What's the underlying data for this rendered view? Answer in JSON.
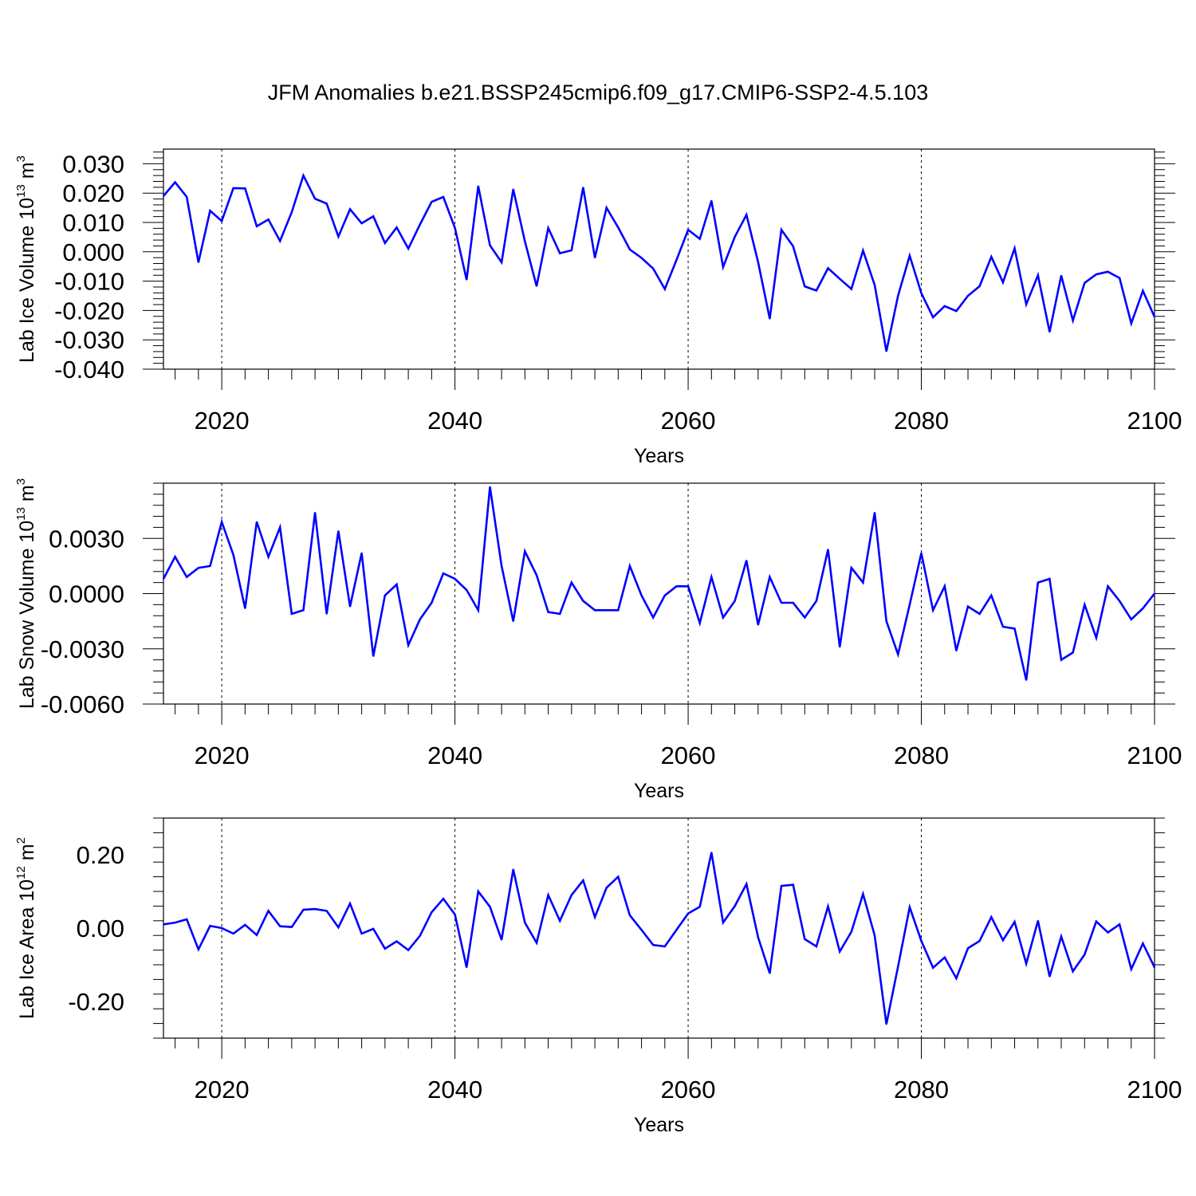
{
  "figure": {
    "title": "JFM Anomalies b.e21.BSSP245cmip6.f09_g17.CMIP6-SSP2-4.5.103"
  },
  "chart_data": [
    {
      "type": "line",
      "title": "JFM Anomalies b.e21.BSSP245cmip6.f09_g17.CMIP6-SSP2-4.5.103",
      "ylabel": "Lab Ice Volume 10",
      "ylabel_exp": "13",
      "ylabel_unit": "m",
      "ylabel_unit_exp": "3",
      "xlabel": "Years",
      "xlim": [
        2015,
        2100
      ],
      "ylim": [
        -0.04,
        0.035
      ],
      "yticks": [
        0.03,
        0.02,
        0.01,
        0.0,
        -0.01,
        -0.02,
        -0.03,
        -0.04
      ],
      "ytick_labels": [
        "0.030",
        "0.020",
        "0.010",
        "0.000",
        "-0.010",
        "-0.020",
        "-0.030",
        "-0.040"
      ],
      "xticks": [
        2020,
        2040,
        2060,
        2080,
        2100
      ],
      "xtick_labels": [
        "2020",
        "2040",
        "2060",
        "2080",
        "2100"
      ],
      "grid": "dashed vertical at major x ticks",
      "line_color": "#0000ff",
      "series": [
        {
          "x_start": 2015,
          "values": [
            0.019,
            0.0237,
            0.0187,
            -0.0036,
            0.014,
            0.0105,
            0.0217,
            0.0216,
            0.0087,
            0.011,
            0.0037,
            0.0135,
            0.026,
            0.0181,
            0.0164,
            0.0052,
            0.0145,
            0.0097,
            0.0121,
            0.003,
            0.0083,
            0.0011,
            0.0093,
            0.017,
            0.0187,
            0.0081,
            -0.0095,
            0.0224,
            0.0022,
            -0.0036,
            0.0213,
            0.0036,
            -0.0117,
            0.0081,
            -0.0005,
            0.0005,
            0.0219,
            -0.002,
            0.015,
            0.0083,
            0.0008,
            -0.0021,
            -0.0057,
            -0.0127,
            -0.0028,
            0.0075,
            0.0044,
            0.0174,
            -0.0052,
            0.0051,
            0.0126,
            -0.0035,
            -0.0228,
            0.0075,
            0.0019,
            -0.0118,
            -0.0132,
            -0.0056,
            -0.0092,
            -0.0127,
            0.0004,
            -0.0113,
            -0.0339,
            -0.015,
            -0.0013,
            -0.0141,
            -0.0223,
            -0.0185,
            -0.0202,
            -0.015,
            -0.0117,
            -0.0017,
            -0.0104,
            0.0012,
            -0.0179,
            -0.008,
            -0.0273,
            -0.0081,
            -0.0234,
            -0.0106,
            -0.0077,
            -0.0068,
            -0.0089,
            -0.0244,
            -0.0133,
            -0.0222
          ]
        }
      ]
    },
    {
      "type": "line",
      "ylabel": "Lab Snow Volume 10",
      "ylabel_exp": "13",
      "ylabel_unit": "m",
      "ylabel_unit_exp": "3",
      "xlabel": "Years",
      "xlim": [
        2015,
        2100
      ],
      "ylim": [
        -0.006,
        0.006
      ],
      "yticks": [
        0.003,
        0.0,
        -0.003,
        -0.006
      ],
      "ytick_labels": [
        "0.0030",
        "0.0000",
        "-0.0030",
        "-0.0060"
      ],
      "xticks": [
        2020,
        2040,
        2060,
        2080,
        2100
      ],
      "xtick_labels": [
        "2020",
        "2040",
        "2060",
        "2080",
        "2100"
      ],
      "grid": "dashed vertical at major x ticks",
      "line_color": "#0000ff",
      "series": [
        {
          "x_start": 2015,
          "values": [
            0.0008,
            0.002,
            0.0009,
            0.0014,
            0.0015,
            0.0039,
            0.0021,
            -0.0008,
            0.0039,
            0.002,
            0.0036,
            -0.0011,
            -0.0009,
            0.0044,
            -0.0011,
            0.0034,
            -0.0007,
            0.0022,
            -0.0034,
            -0.0001,
            0.0005,
            -0.0028,
            -0.0014,
            -0.0005,
            0.0011,
            0.0008,
            0.0002,
            -0.0009,
            0.0058,
            0.0015,
            -0.0015,
            0.0023,
            0.001,
            -0.001,
            -0.0011,
            0.0006,
            -0.0004,
            -0.0009,
            -0.0009,
            -0.0009,
            0.0015,
            -0.0001,
            -0.0013,
            -0.0001,
            0.0004,
            0.0004,
            -0.0016,
            0.0009,
            -0.0013,
            -0.0004,
            0.0018,
            -0.0017,
            0.0009,
            -0.0005,
            -0.0005,
            -0.0013,
            -0.0004,
            0.0024,
            -0.0029,
            0.0014,
            0.0006,
            0.0044,
            -0.0015,
            -0.0033,
            -0.0006,
            0.0022,
            -0.0009,
            0.0004,
            -0.0031,
            -0.0007,
            -0.0011,
            -0.0001,
            -0.0018,
            -0.0019,
            -0.0047,
            0.0006,
            0.0008,
            -0.0036,
            -0.0032,
            -0.0006,
            -0.0024,
            0.0004,
            -0.0004,
            -0.0014,
            -0.0008,
            0.0
          ]
        }
      ]
    },
    {
      "type": "line",
      "ylabel": "Lab Ice Area 10",
      "ylabel_exp": "12",
      "ylabel_unit": "m",
      "ylabel_unit_exp": "2",
      "xlabel": "Years",
      "xlim": [
        2015,
        2100
      ],
      "ylim": [
        -0.3,
        0.3
      ],
      "yticks": [
        0.2,
        0.0,
        -0.2
      ],
      "ytick_labels": [
        "0.20",
        "0.00",
        "-0.20"
      ],
      "xticks": [
        2020,
        2040,
        2060,
        2080,
        2100
      ],
      "xtick_labels": [
        "2020",
        "2040",
        "2060",
        "2080",
        "2100"
      ],
      "grid": "dashed vertical at major x ticks",
      "line_color": "#0000ff",
      "series": [
        {
          "x_start": 2015,
          "values": [
            0.01,
            0.015,
            0.024,
            -0.058,
            0.006,
            0.0,
            -0.015,
            0.009,
            -0.019,
            0.047,
            0.005,
            0.003,
            0.05,
            0.052,
            0.047,
            0.002,
            0.067,
            -0.015,
            -0.002,
            -0.056,
            -0.036,
            -0.06,
            -0.021,
            0.043,
            0.08,
            0.037,
            -0.107,
            0.1,
            0.058,
            -0.032,
            0.16,
            0.015,
            -0.04,
            0.09,
            0.02,
            0.09,
            0.13,
            0.03,
            0.11,
            0.14,
            0.035,
            -0.005,
            -0.046,
            -0.05,
            -0.005,
            0.04,
            0.058,
            0.206,
            0.015,
            0.06,
            0.12,
            -0.025,
            -0.123,
            0.115,
            0.118,
            -0.03,
            -0.05,
            0.059,
            -0.064,
            -0.01,
            0.093,
            -0.02,
            -0.262,
            -0.105,
            0.057,
            -0.035,
            -0.108,
            -0.08,
            -0.137,
            -0.055,
            -0.035,
            0.03,
            -0.033,
            0.017,
            -0.097,
            0.02,
            -0.132,
            -0.023,
            -0.118,
            -0.072,
            0.018,
            -0.012,
            0.01,
            -0.112,
            -0.042,
            -0.107
          ]
        }
      ]
    }
  ]
}
